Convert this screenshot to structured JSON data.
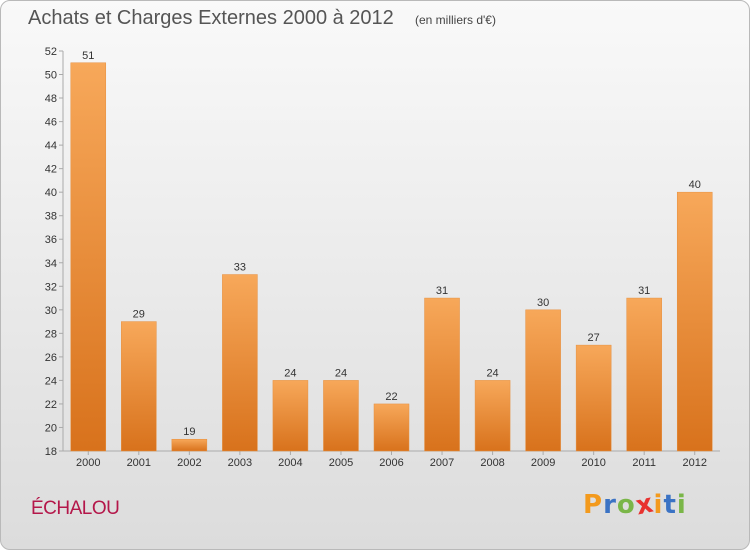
{
  "title": "Achats et Charges Externes 2000 à 2012",
  "subtitle": "(en milliers d'€)",
  "commune": "ÉCHALOU",
  "logo": {
    "letters": [
      "P",
      "r",
      "o",
      "x",
      "i",
      "t",
      "i"
    ],
    "colors": [
      "#f39a1d",
      "#3b73c4",
      "#7ab648",
      "#e8322f",
      "#f39a1d",
      "#3b73c4",
      "#7ab648"
    ]
  },
  "colors": {
    "bar_top": "#f7a85a",
    "bar_bottom": "#d8721c",
    "text": "#333333",
    "title": "#555555",
    "commune": "#b4174a"
  },
  "chart_data": {
    "type": "bar",
    "categories": [
      "2000",
      "2001",
      "2002",
      "2003",
      "2004",
      "2005",
      "2006",
      "2007",
      "2008",
      "2009",
      "2010",
      "2011",
      "2012"
    ],
    "values": [
      51,
      29,
      19,
      33,
      24,
      24,
      22,
      31,
      24,
      30,
      27,
      31,
      40
    ],
    "title": "Achats et Charges Externes 2000 à 2012",
    "subtitle": "(en milliers d'€)",
    "ylim": [
      18,
      52
    ],
    "yticks": [
      18,
      20,
      22,
      24,
      26,
      28,
      30,
      32,
      34,
      36,
      38,
      40,
      42,
      44,
      46,
      48,
      50,
      52
    ],
    "grid": false,
    "legend": "none"
  }
}
